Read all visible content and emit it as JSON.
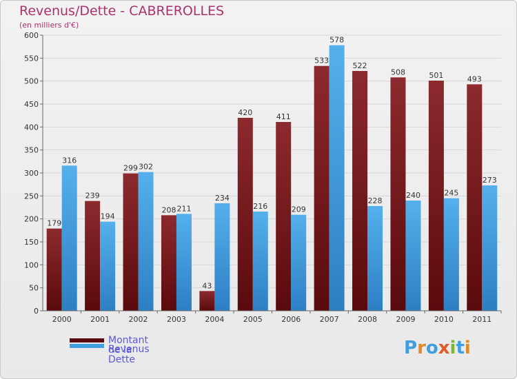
{
  "page": {
    "title": "Revenus/Dette - CABREROLLES",
    "subtitle": "(en milliers d'€)",
    "brand": "Proxiti"
  },
  "colors": {
    "dette": "#7b1a1e",
    "revenus": "#3f9fdf",
    "title": "#a8326b",
    "legend_text": "#5a5ad8"
  },
  "chart_data": {
    "type": "bar",
    "title": "Revenus/Dette - CABREROLLES",
    "subtitle": "(en milliers d'€)",
    "categories": [
      "2000",
      "2001",
      "2002",
      "2003",
      "2004",
      "2005",
      "2006",
      "2007",
      "2008",
      "2009",
      "2010",
      "2011"
    ],
    "series": [
      {
        "name": "Montant de la Dette",
        "values": [
          179,
          239,
          299,
          208,
          43,
          420,
          411,
          533,
          522,
          508,
          501,
          493
        ]
      },
      {
        "name": "Revenus",
        "values": [
          316,
          194,
          302,
          211,
          234,
          216,
          209,
          578,
          228,
          240,
          245,
          273
        ]
      }
    ],
    "yticks": [
      0,
      50,
      100,
      150,
      200,
      250,
      300,
      350,
      400,
      450,
      500,
      550,
      600
    ],
    "ylim": [
      0,
      600
    ],
    "grid": true,
    "legend_position": "bottom-left"
  }
}
